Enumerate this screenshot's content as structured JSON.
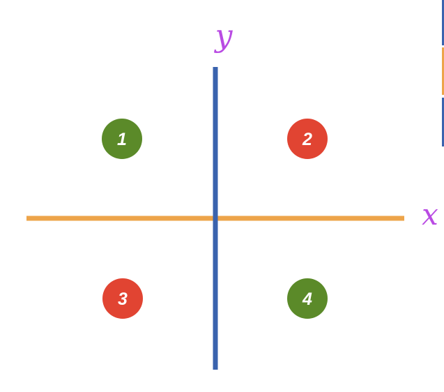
{
  "axes": {
    "x_label": "x",
    "y_label": "y",
    "x_color": "#EDA44A",
    "y_color": "#3A63AE",
    "label_color": "#B94BE3"
  },
  "quadrants": [
    {
      "label": "1",
      "color": "#5B8A29"
    },
    {
      "label": "2",
      "color": "#E14432"
    },
    {
      "label": "3",
      "color": "#E14432"
    },
    {
      "label": "4",
      "color": "#5B8A29"
    }
  ],
  "edge_strip_colors": [
    "#3A63AE",
    "#EDA44A",
    "#3A63AE"
  ]
}
